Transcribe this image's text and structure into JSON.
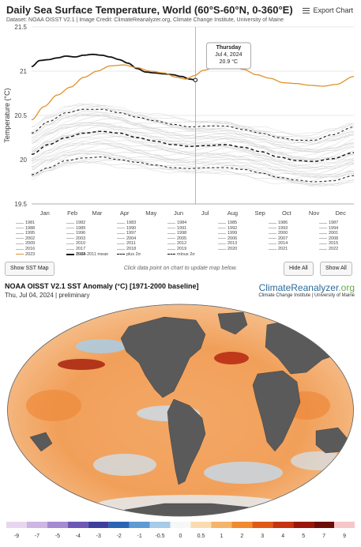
{
  "header": {
    "title": "Daily Sea Surface Temperature, World (60°S-60°N, 0-360°E)",
    "subtitle": "Dataset: NOAA OISST V2.1 | Image Credit: ClimateReanalyzer.org, Climate Change Institute, University of Maine",
    "export_label": "Export Chart"
  },
  "colors": {
    "y2024": "#111111",
    "y2023": "#e0922b",
    "historical": "#cccccc",
    "mean": "#111111",
    "land": "#5a5a5a",
    "ocean_warm": "#f2a25c",
    "ocean_cool": "#a9cce6"
  },
  "tooltip": {
    "day": "Thursday",
    "date": "Jul 4, 2024",
    "value": "20.9 °C"
  },
  "chart_data": {
    "type": "line",
    "ylabel": "Temperature (°C)",
    "ylim": [
      19.5,
      21.5
    ],
    "yticks": [
      "21.5",
      "21",
      "20.5",
      "20",
      "19.5"
    ],
    "months": [
      "Jan",
      "Feb",
      "Mar",
      "Apr",
      "May",
      "Jun",
      "Jul",
      "Aug",
      "Sep",
      "Oct",
      "Nov",
      "Dec"
    ],
    "grid": true,
    "series": [
      {
        "name": "2024",
        "style": "solid-bold",
        "x": [
          1,
          10,
          20,
          30,
          40,
          50,
          60,
          70,
          80,
          90,
          100,
          110,
          120,
          130,
          140,
          150,
          160,
          170,
          180,
          186
        ],
        "y": [
          21.05,
          21.12,
          21.13,
          21.15,
          21.17,
          21.16,
          21.18,
          21.19,
          21.18,
          21.16,
          21.13,
          21.09,
          21.03,
          20.99,
          20.98,
          20.97,
          20.96,
          20.94,
          20.91,
          20.9
        ]
      },
      {
        "name": "2023",
        "style": "solid-orange",
        "x": [
          1,
          15,
          30,
          45,
          60,
          75,
          90,
          105,
          120,
          135,
          150,
          165,
          175,
          185,
          195,
          210,
          225,
          240,
          255,
          270,
          285,
          300,
          315,
          330,
          345,
          365
        ],
        "y": [
          20.45,
          20.6,
          20.73,
          20.82,
          20.93,
          21.0,
          21.06,
          21.07,
          21.04,
          21.0,
          20.98,
          20.93,
          20.91,
          20.95,
          21.01,
          21.05,
          21.07,
          21.02,
          20.96,
          20.92,
          20.87,
          20.86,
          20.84,
          20.83,
          20.85,
          20.94
        ]
      },
      {
        "name": "1982-2011 mean",
        "style": "dashed-bold",
        "x": [
          1,
          20,
          40,
          60,
          80,
          100,
          120,
          140,
          160,
          180,
          200,
          220,
          240,
          260,
          280,
          300,
          320,
          340,
          365
        ],
        "y": [
          20.06,
          20.17,
          20.25,
          20.3,
          20.32,
          20.3,
          20.25,
          20.21,
          20.17,
          20.15,
          20.16,
          20.17,
          20.14,
          20.09,
          20.03,
          19.99,
          19.98,
          20.01,
          20.08
        ]
      },
      {
        "name": "plus 2σ",
        "style": "dashed",
        "x": [
          1,
          20,
          40,
          60,
          80,
          100,
          120,
          140,
          160,
          180,
          200,
          220,
          240,
          260,
          280,
          300,
          320,
          340,
          365
        ],
        "y": [
          20.3,
          20.43,
          20.53,
          20.57,
          20.57,
          20.53,
          20.48,
          20.44,
          20.4,
          20.37,
          20.38,
          20.38,
          20.34,
          20.3,
          20.25,
          20.22,
          20.22,
          20.28,
          20.37
        ]
      },
      {
        "name": "minus 2σ",
        "style": "dashed",
        "x": [
          1,
          20,
          40,
          60,
          80,
          100,
          120,
          140,
          160,
          180,
          200,
          220,
          240,
          260,
          280,
          300,
          320,
          340,
          365
        ],
        "y": [
          19.83,
          19.91,
          19.99,
          20.02,
          20.03,
          20.0,
          19.97,
          19.94,
          19.91,
          19.9,
          19.91,
          19.91,
          19.89,
          19.85,
          19.8,
          19.77,
          19.75,
          19.76,
          19.82
        ]
      }
    ],
    "legend_years": [
      "1981",
      "1982",
      "1983",
      "1984",
      "1985",
      "1986",
      "1987",
      "1988",
      "1989",
      "1990",
      "1991",
      "1992",
      "1993",
      "1994",
      "1995",
      "1996",
      "1997",
      "1998",
      "1999",
      "2000",
      "2001",
      "2002",
      "2003",
      "2004",
      "2005",
      "2006",
      "2007",
      "2008",
      "2009",
      "2010",
      "2011",
      "2012",
      "2013",
      "2014",
      "2015",
      "2016",
      "2017",
      "2018",
      "2019",
      "2020",
      "2021",
      "2022",
      "2023",
      "2024",
      "1982-2011 mean",
      "plus 2σ",
      "minus 2σ"
    ]
  },
  "controls": {
    "show_map_label": "Show SST Map",
    "hint": "Click data point on chart to update map below.",
    "hide_all_label": "Hide All",
    "show_all_label": "Show All"
  },
  "map": {
    "title": "NOAA OISST V2.1 SST Anomaly (°C) [1971-2000 baseline]",
    "subtitle": "Thu, Jul 04, 2024 | preliminary",
    "brand_main": "ClimateReanalyzer",
    "brand_suffix": ".org",
    "brand_sub": "Climate Change Institute | University of Maine"
  },
  "colorbar": {
    "ticks": [
      "-9",
      "-7",
      "-5",
      "-4",
      "-3",
      "-2",
      "-1",
      "-0.5",
      "0",
      "0.5",
      "1",
      "2",
      "3",
      "4",
      "5",
      "7",
      "9"
    ],
    "colors": [
      "#e8d6f0",
      "#cdb6e3",
      "#a58bd1",
      "#6d58b6",
      "#3c3f9e",
      "#2a64b5",
      "#5c9bd3",
      "#a7cbe8",
      "#f7f7f7",
      "#fbdcb0",
      "#f6b46a",
      "#f08a2d",
      "#e05a16",
      "#c63311",
      "#9a160c",
      "#6e0d08",
      "#f6c7c7"
    ]
  }
}
